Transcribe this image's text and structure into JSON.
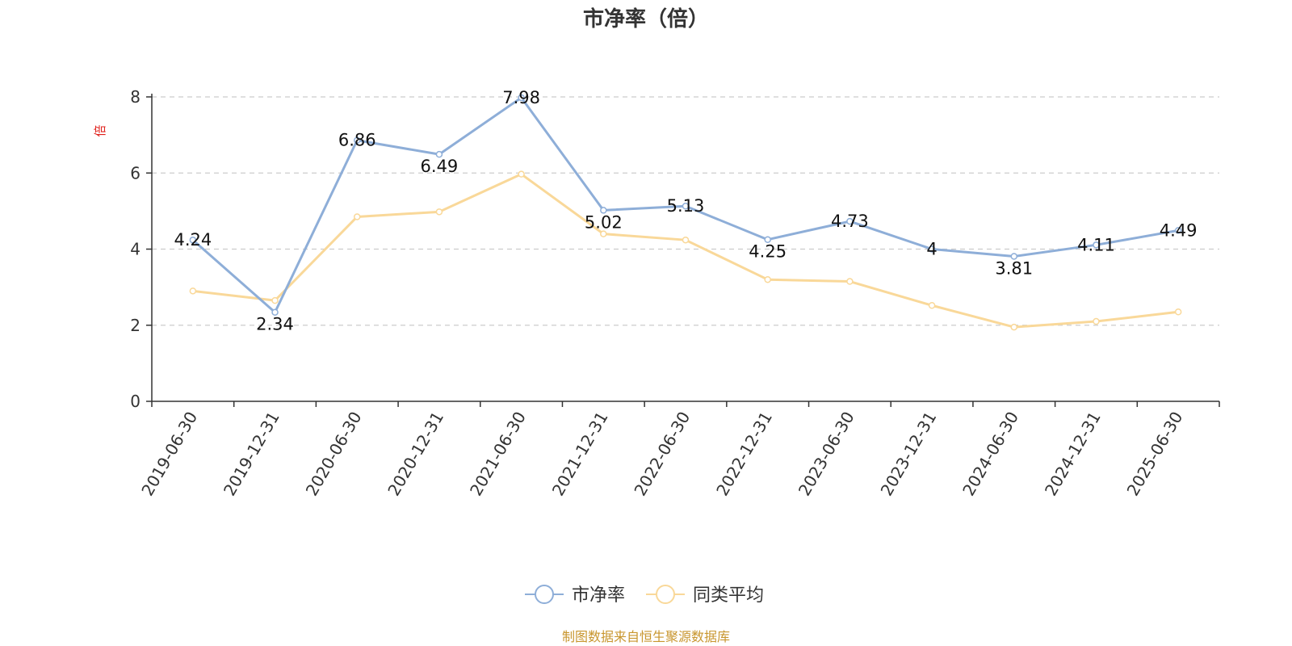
{
  "chart_data": {
    "type": "line",
    "title": "市净率（倍）",
    "ylabel": "倍",
    "xlabel": "",
    "categories": [
      "2019-06-30",
      "2019-12-31",
      "2020-06-30",
      "2020-12-31",
      "2021-06-30",
      "2021-12-31",
      "2022-06-30",
      "2022-12-31",
      "2023-06-30",
      "2023-12-31",
      "2024-06-30",
      "2024-12-31",
      "2025-06-30"
    ],
    "ylim": [
      0,
      8
    ],
    "yticks": [
      "0",
      "2",
      "4",
      "6",
      "8"
    ],
    "grid": true,
    "legend_position": "bottom-center",
    "series": [
      {
        "name": "市净率",
        "color": "#8eaed8",
        "values": [
          4.24,
          2.34,
          6.86,
          6.49,
          7.98,
          5.02,
          5.13,
          4.25,
          4.73,
          4.0,
          3.81,
          4.11,
          4.49
        ],
        "labels": [
          "4.24",
          "2.34",
          "6.86",
          "6.49",
          "7.98",
          "5.02",
          "5.13",
          "4.25",
          "4.73",
          "4",
          "3.81",
          "4.11",
          "4.49"
        ]
      },
      {
        "name": "同类平均",
        "color": "#f9d899",
        "values": [
          2.9,
          2.65,
          4.85,
          4.98,
          5.97,
          4.4,
          4.24,
          3.2,
          3.15,
          2.52,
          1.95,
          2.1,
          2.35
        ]
      }
    ]
  },
  "footer": {
    "source": "制图数据来自恒生聚源数据库"
  }
}
